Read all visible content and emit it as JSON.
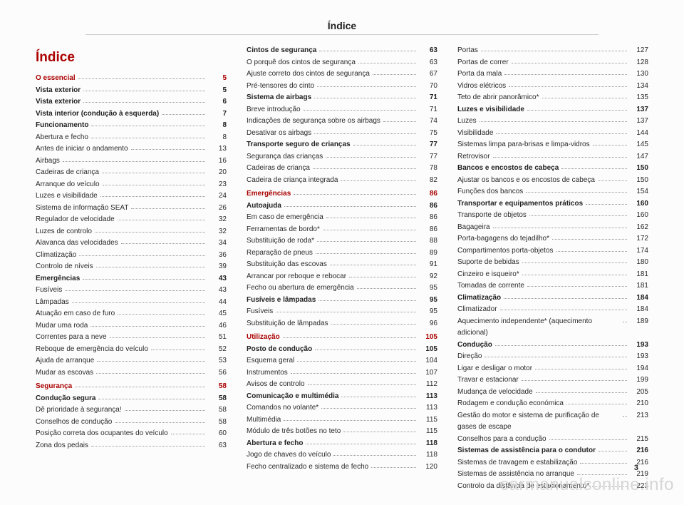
{
  "header": "Índice",
  "page_number": "3",
  "watermark": "carmanualsonline.info",
  "columns": [
    [
      {
        "type": "title",
        "label": "Índice"
      },
      {
        "type": "sec",
        "label": "O essencial",
        "page": "5"
      },
      {
        "type": "secdark",
        "label": "Vista exterior",
        "page": "5"
      },
      {
        "type": "secdark",
        "label": "Vista exterior",
        "page": "6"
      },
      {
        "type": "secdark",
        "label": "Vista interior (condução à esquerda)",
        "page": "7"
      },
      {
        "type": "secdark",
        "label": "Funcionamento",
        "page": "8"
      },
      {
        "type": "row",
        "label": "Abertura e fecho",
        "page": "8"
      },
      {
        "type": "row",
        "label": "Antes de iniciar o andamento",
        "page": "13"
      },
      {
        "type": "row",
        "label": "Airbags",
        "page": "16"
      },
      {
        "type": "row",
        "label": "Cadeiras de criança",
        "page": "20"
      },
      {
        "type": "row",
        "label": "Arranque do veículo",
        "page": "23"
      },
      {
        "type": "row",
        "label": "Luzes e visibilidade",
        "page": "24"
      },
      {
        "type": "row",
        "label": "Sistema de informação SEAT",
        "page": "26"
      },
      {
        "type": "row",
        "label": "Regulador de velocidade",
        "page": "32"
      },
      {
        "type": "row",
        "label": "Luzes de controlo",
        "page": "32"
      },
      {
        "type": "row",
        "label": "Alavanca das velocidades",
        "page": "34"
      },
      {
        "type": "row",
        "label": "Climatização",
        "page": "36"
      },
      {
        "type": "row",
        "label": "Controlo de níveis",
        "page": "39"
      },
      {
        "type": "secdark",
        "label": "Emergências",
        "page": "43"
      },
      {
        "type": "row",
        "label": "Fusíveis",
        "page": "43"
      },
      {
        "type": "row",
        "label": "Lâmpadas",
        "page": "44"
      },
      {
        "type": "row",
        "label": "Atuação em caso de furo",
        "page": "45"
      },
      {
        "type": "row",
        "label": "Mudar uma roda",
        "page": "46"
      },
      {
        "type": "row",
        "label": "Correntes para a neve",
        "page": "51"
      },
      {
        "type": "row",
        "label": "Reboque de emergência do veículo",
        "page": "52"
      },
      {
        "type": "row",
        "label": "Ajuda de arranque",
        "page": "53"
      },
      {
        "type": "row",
        "label": "Mudar as escovas",
        "page": "56"
      },
      {
        "type": "sec",
        "label": "Segurança",
        "page": "58"
      },
      {
        "type": "secdark",
        "label": "Condução segura",
        "page": "58"
      },
      {
        "type": "row",
        "label": "Dê prioridade à segurança!",
        "page": "58"
      },
      {
        "type": "row",
        "label": "Conselhos de condução",
        "page": "58"
      },
      {
        "type": "row",
        "label": "Posição correta dos ocupantes do veículo",
        "page": "60"
      },
      {
        "type": "row",
        "label": "Zona dos pedais",
        "page": "63"
      }
    ],
    [
      {
        "type": "secdark",
        "label": "Cintos de segurança",
        "page": "63"
      },
      {
        "type": "row",
        "label": "O porquê dos cintos de segurança",
        "page": "63"
      },
      {
        "type": "row",
        "label": "Ajuste correto dos cintos de segurança",
        "page": "67"
      },
      {
        "type": "row",
        "label": "Pré-tensores do cinto",
        "page": "70"
      },
      {
        "type": "secdark",
        "label": "Sistema de airbags",
        "page": "71"
      },
      {
        "type": "row",
        "label": "Breve introdução",
        "page": "71"
      },
      {
        "type": "row",
        "label": "Indicações de segurança sobre os airbags",
        "page": "74"
      },
      {
        "type": "row",
        "label": "Desativar os airbags",
        "page": "75"
      },
      {
        "type": "secdark",
        "label": "Transporte seguro de crianças",
        "page": "77"
      },
      {
        "type": "row",
        "label": "Segurança das crianças",
        "page": "77"
      },
      {
        "type": "row",
        "label": "Cadeiras de criança",
        "page": "78"
      },
      {
        "type": "row",
        "label": "Cadeira de criança integrada",
        "page": "82"
      },
      {
        "type": "sec",
        "label": "Emergências",
        "page": "86"
      },
      {
        "type": "secdark",
        "label": "Autoajuda",
        "page": "86"
      },
      {
        "type": "row",
        "label": "Em caso de emergência",
        "page": "86"
      },
      {
        "type": "row",
        "label": "Ferramentas de bordo*",
        "page": "86"
      },
      {
        "type": "row",
        "label": "Substituição de roda*",
        "page": "88"
      },
      {
        "type": "row",
        "label": "Reparação de pneus",
        "page": "89"
      },
      {
        "type": "row",
        "label": "Substituição das escovas",
        "page": "91"
      },
      {
        "type": "row",
        "label": "Arrancar por reboque e rebocar",
        "page": "92"
      },
      {
        "type": "row",
        "label": "Fecho ou abertura de emergência",
        "page": "95"
      },
      {
        "type": "secdark",
        "label": "Fusíveis e lâmpadas",
        "page": "95"
      },
      {
        "type": "row",
        "label": "Fusíveis",
        "page": "95"
      },
      {
        "type": "row",
        "label": "Substituição de lâmpadas",
        "page": "96"
      },
      {
        "type": "sec",
        "label": "Utilização",
        "page": "105"
      },
      {
        "type": "secdark",
        "label": "Posto de condução",
        "page": "105"
      },
      {
        "type": "row",
        "label": "Esquema geral",
        "page": "104"
      },
      {
        "type": "row",
        "label": "Instrumentos",
        "page": "107"
      },
      {
        "type": "row",
        "label": "Avisos de controlo",
        "page": "112"
      },
      {
        "type": "secdark",
        "label": "Comunicação e multimédia",
        "page": "113"
      },
      {
        "type": "row",
        "label": "Comandos no volante*",
        "page": "113"
      },
      {
        "type": "row",
        "label": "Multimédia",
        "page": "115"
      },
      {
        "type": "row",
        "label": "Módulo de três botões no teto",
        "page": "115"
      },
      {
        "type": "secdark",
        "label": "Abertura e fecho",
        "page": "118"
      },
      {
        "type": "row",
        "label": "Jogo de chaves do veículo",
        "page": "118"
      },
      {
        "type": "row",
        "label": "Fecho centralizado e sistema de fecho",
        "page": "120"
      }
    ],
    [
      {
        "type": "row",
        "label": "Portas",
        "page": "127"
      },
      {
        "type": "row",
        "label": "Portas de correr",
        "page": "128"
      },
      {
        "type": "row",
        "label": "Porta da mala",
        "page": "130"
      },
      {
        "type": "row",
        "label": "Vidros elétricos",
        "page": "134"
      },
      {
        "type": "row",
        "label": "Teto de abrir panorâmico*",
        "page": "135"
      },
      {
        "type": "secdark",
        "label": "Luzes e visibilidade",
        "page": "137"
      },
      {
        "type": "row",
        "label": "Luzes",
        "page": "137"
      },
      {
        "type": "row",
        "label": "Visibilidade",
        "page": "144"
      },
      {
        "type": "row",
        "label": "Sistemas limpa para-brisas e limpa-vidros",
        "page": "145"
      },
      {
        "type": "row",
        "label": "Retrovisor",
        "page": "147"
      },
      {
        "type": "secdark",
        "label": "Bancos e encostos de cabeça",
        "page": "150"
      },
      {
        "type": "row",
        "label": "Ajustar os bancos e os encostos de cabeça",
        "page": "150"
      },
      {
        "type": "row",
        "label": "Funções dos bancos",
        "page": "154"
      },
      {
        "type": "secdark",
        "label": "Transportar e equipamentos práticos",
        "page": "160"
      },
      {
        "type": "row",
        "label": "Transporte de objetos",
        "page": "160"
      },
      {
        "type": "row",
        "label": "Bagageira",
        "page": "162"
      },
      {
        "type": "row",
        "label": "Porta-bagagens do tejadilho*",
        "page": "172"
      },
      {
        "type": "row",
        "label": "Compartimentos porta-objetos",
        "page": "174"
      },
      {
        "type": "row",
        "label": "Suporte de bebidas",
        "page": "180"
      },
      {
        "type": "row",
        "label": "Cinzeiro e isqueiro*",
        "page": "181"
      },
      {
        "type": "row",
        "label": "Tomadas de corrente",
        "page": "181"
      },
      {
        "type": "secdark",
        "label": "Climatização",
        "page": "184"
      },
      {
        "type": "row",
        "label": "Climatizador",
        "page": "184"
      },
      {
        "type": "row",
        "label": "Aquecimento independente* (aquecimento adicional)",
        "page": "189"
      },
      {
        "type": "secdark",
        "label": "Condução",
        "page": "193"
      },
      {
        "type": "row",
        "label": "Direção",
        "page": "193"
      },
      {
        "type": "row",
        "label": "Ligar e desligar o motor",
        "page": "194"
      },
      {
        "type": "row",
        "label": "Travar e estacionar",
        "page": "199"
      },
      {
        "type": "row",
        "label": "Mudança de velocidade",
        "page": "205"
      },
      {
        "type": "row",
        "label": "Rodagem e condução económica",
        "page": "210"
      },
      {
        "type": "row",
        "label": "Gestão do motor e sistema de purificação de gases de escape",
        "page": "213"
      },
      {
        "type": "row",
        "label": "Conselhos para a condução",
        "page": "215"
      },
      {
        "type": "secdark",
        "label": "Sistemas de assistência para o condutor",
        "page": "216"
      },
      {
        "type": "row",
        "label": "Sistemas de travagem e estabilização",
        "page": "216"
      },
      {
        "type": "row",
        "label": "Sistemas de assistência no arranque",
        "page": "219"
      },
      {
        "type": "row",
        "label": "Controlo da distância de estacionamento*",
        "page": "223"
      }
    ]
  ]
}
